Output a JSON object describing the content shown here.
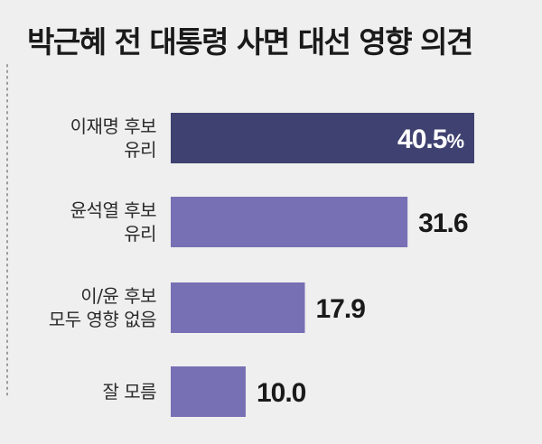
{
  "chart_data": {
    "type": "bar",
    "orientation": "horizontal",
    "title": "박근혜 전 대통령 사면 대선 영향 의견",
    "categories": [
      [
        "이재명 후보",
        "유리"
      ],
      [
        "윤석열 후보",
        "유리"
      ],
      [
        "이/윤 후보",
        "모두 영향 없음"
      ],
      [
        "잘 모름"
      ]
    ],
    "values": [
      40.5,
      31.6,
      17.9,
      10.0
    ],
    "value_labels": [
      "40.5",
      "31.6",
      "17.9",
      "10.0"
    ],
    "unit": "%",
    "xlim": [
      0,
      50
    ],
    "grid": false,
    "legend": "none",
    "colors": {
      "highlight": "#3f4270",
      "bar": "#7770b4",
      "label_on_bar": "#ffffff",
      "label_outside": "#1a1a1a",
      "dotted_axis": "#9a9a9a"
    }
  }
}
